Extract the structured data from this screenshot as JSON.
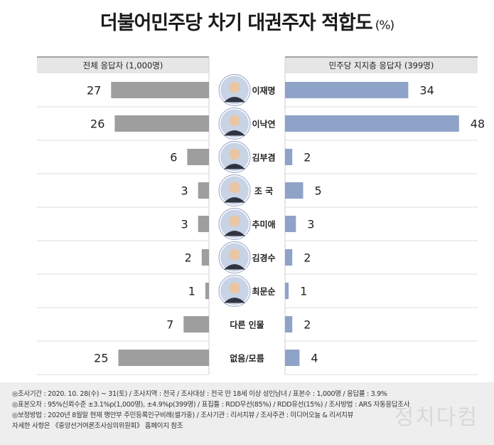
{
  "title": "더불어민주당 차기 대권주자 적합도",
  "title_unit": "(%)",
  "chart_data": {
    "type": "bar",
    "left_header": "전체 응답자 (1,000명)",
    "right_header": "민주당 지지층 응답자 (399명)",
    "categories": [
      "이재명",
      "이낙연",
      "김부겸",
      "조 국",
      "추미애",
      "김경수",
      "최문순",
      "다른 인물",
      "없음/모름"
    ],
    "series": [
      {
        "name": "전체 응답자 (1,000명)",
        "values": [
          27,
          26,
          6,
          3,
          3,
          2,
          1,
          7,
          25
        ],
        "color": "#9e9e9e"
      },
      {
        "name": "민주당 지지층 응답자 (399명)",
        "values": [
          34,
          48,
          2,
          5,
          3,
          2,
          1,
          2,
          4
        ],
        "color": "#8fa3c8"
      }
    ],
    "has_photo": [
      true,
      true,
      true,
      true,
      true,
      true,
      true,
      false,
      false
    ],
    "xlim": [
      0,
      50
    ]
  },
  "notes": [
    "◎조사기간 : 2020. 10. 28(수) ~ 31(토) / 조사지역 : 전국 / 조사대상 : 전국 만 18세 이상 성인남녀 / 표본수 : 1,000명 / 응답률 : 3.9%",
    "◎표본오차 : 95%신뢰수준 ±3.1%p(1,000명), ±4.9%p(399명) / 표집틀 : RDD무선(85%) / RDD유선(15%) / 조사방법 : ARS 자동응답조사",
    "◎보정방법 : 2020년 8월말 현재 행안부 주민등록인구비례(셀가중) / 조사기관 : 리서치뷰 / 조사주관 : 미디어오늘 & 리서치뷰",
    "자세한 사항은 《중앙선거여론조사심의위원회》 홈페이지 참조"
  ],
  "watermark": "정치다컴"
}
